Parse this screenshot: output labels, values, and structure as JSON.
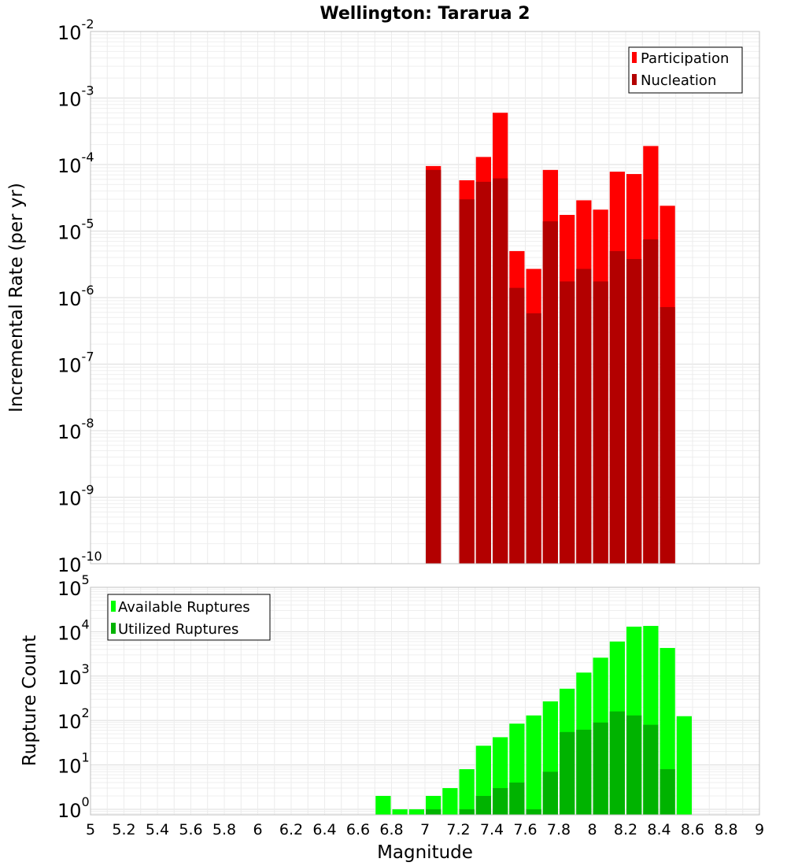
{
  "chart_data": {
    "title": "Wellington: Tararua 2",
    "xlabel": "Magnitude",
    "xlim": [
      5,
      9
    ],
    "x_tick_labels": [
      "5",
      "5.2",
      "5.4",
      "5.6",
      "5.8",
      "6",
      "6.2",
      "6.4",
      "6.6",
      "6.8",
      "7",
      "7.2",
      "7.4",
      "7.6",
      "7.8",
      "8",
      "8.2",
      "8.4",
      "8.6",
      "8.8",
      "9"
    ],
    "panels": [
      {
        "type": "bar",
        "scale": "log",
        "ylabel": "Incremental Rate (per yr)",
        "ylim": [
          1e-10,
          0.01
        ],
        "y_tick_exponents": [
          "-10",
          "-9",
          "-8",
          "-7",
          "-6",
          "-5",
          "-4",
          "-3",
          "-2"
        ],
        "grid": true,
        "legend_placement": "top-right",
        "x": [
          7.05,
          7.25,
          7.35,
          7.45,
          7.55,
          7.65,
          7.75,
          7.85,
          7.95,
          8.05,
          8.15,
          8.25,
          8.35,
          8.45
        ],
        "series": [
          {
            "name": "Participation",
            "color": "#ff0000",
            "values": [
              9.5e-05,
              5.8e-05,
              0.00013,
              0.0006,
              5e-06,
              2.7e-06,
              8.3e-05,
              1.75e-05,
              2.9e-05,
              2.1e-05,
              7.8e-05,
              7.2e-05,
              0.00019,
              2.4e-05
            ]
          },
          {
            "name": "Nucleation",
            "color": "#b30000",
            "values": [
              8.3e-05,
              3e-05,
              5.5e-05,
              6.2e-05,
              1.4e-06,
              5.8e-07,
              1.4e-05,
              1.75e-06,
              2.7e-06,
              1.75e-06,
              5e-06,
              3.8e-06,
              7.5e-06,
              7.2e-07
            ]
          }
        ]
      },
      {
        "type": "bar",
        "scale": "log",
        "ylabel": "Rupture Count",
        "ylim": [
          0.75,
          100000.0
        ],
        "y_tick_exponents": [
          "0",
          "1",
          "2",
          "3",
          "4",
          "5"
        ],
        "grid": true,
        "legend_placement": "top-left",
        "x": [
          6.75,
          6.85,
          6.95,
          7.05,
          7.15,
          7.25,
          7.35,
          7.45,
          7.55,
          7.65,
          7.75,
          7.85,
          7.95,
          8.05,
          8.15,
          8.25,
          8.35,
          8.45,
          8.55
        ],
        "series": [
          {
            "name": "Available Ruptures",
            "color": "#00ff00",
            "values": [
              2,
              1,
              1,
              2,
              3,
              8,
              27,
              42,
              85,
              130,
              270,
              520,
              1200,
              2600,
              6000,
              13000,
              13500,
              4300,
              125
            ]
          },
          {
            "name": "Utilized Ruptures",
            "color": "#00b300",
            "values": [
              0,
              0,
              0,
              1,
              0,
              1,
              2,
              3,
              4,
              1,
              7,
              55,
              62,
              90,
              160,
              130,
              80,
              8,
              0
            ]
          }
        ]
      }
    ]
  }
}
